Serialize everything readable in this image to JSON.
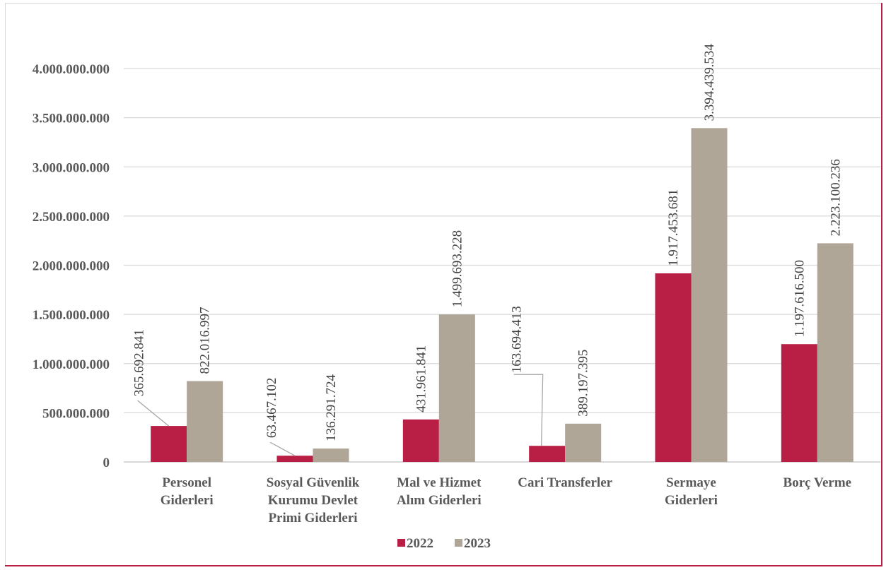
{
  "chart_data": {
    "type": "bar",
    "categories": [
      [
        "Personel",
        "Giderleri"
      ],
      [
        "Sosyal Güvenlik",
        "Kurumu Devlet",
        "Primi Giderleri"
      ],
      [
        "Mal ve Hizmet",
        "Alım Giderleri"
      ],
      [
        "Cari Transferler"
      ],
      [
        "Sermaye",
        "Giderleri"
      ],
      [
        "Borç Verme"
      ]
    ],
    "series": [
      {
        "name": "2022",
        "color": "#b91f45",
        "values": [
          365692841,
          63467102,
          431961841,
          163694413,
          1917453681,
          1197616500
        ],
        "labels": [
          "365.692.841",
          "63.467.102",
          "431.961.841",
          "163.694.413",
          "1.917.453.681",
          "1.197.616.500"
        ]
      },
      {
        "name": "2023",
        "color": "#b0a697",
        "values": [
          822016997,
          136291724,
          1499693228,
          389197395,
          3394439534,
          2223100236
        ],
        "labels": [
          "822.016.997",
          "136.291.724",
          "1.499.693.228",
          "389.197.395",
          "3.394.439.534",
          "2.223.100.236"
        ]
      }
    ],
    "y_ticks": [
      0,
      500000000,
      1000000000,
      1500000000,
      2000000000,
      2500000000,
      3000000000,
      3500000000,
      4000000000
    ],
    "y_tick_labels": [
      "0",
      "500.000.000",
      "1.000.000.000",
      "1.500.000.000",
      "2.000.000.000",
      "2.500.000.000",
      "3.000.000.000",
      "3.500.000.000",
      "4.000.000.000"
    ],
    "ylim": [
      0,
      4000000000
    ],
    "grid": true,
    "legend_position": "bottom",
    "title": "",
    "xlabel": "",
    "ylabel": ""
  }
}
